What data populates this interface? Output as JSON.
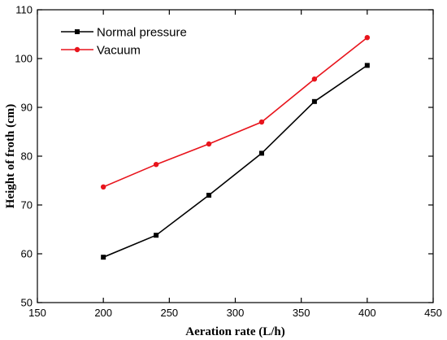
{
  "chart_data": {
    "type": "line",
    "title": "",
    "xlabel": "Aeration rate (L/h)",
    "ylabel": "Height of froth (cm)",
    "xlim": [
      150,
      450
    ],
    "ylim": [
      50,
      110
    ],
    "x_ticks": [
      150,
      200,
      250,
      300,
      350,
      400,
      450
    ],
    "y_ticks": [
      50,
      60,
      70,
      80,
      90,
      100,
      110
    ],
    "grid": false,
    "legend_position": "top-left",
    "x": [
      200,
      240,
      280,
      320,
      360,
      400
    ],
    "series": [
      {
        "name": "Normal pressure",
        "color": "#000000",
        "marker": "square",
        "values": [
          59.3,
          63.8,
          72.0,
          80.6,
          91.2,
          98.6
        ]
      },
      {
        "name": "Vacuum",
        "color": "#e8141c",
        "marker": "circle",
        "values": [
          73.7,
          78.3,
          82.5,
          87.0,
          95.8,
          104.3
        ]
      }
    ]
  }
}
